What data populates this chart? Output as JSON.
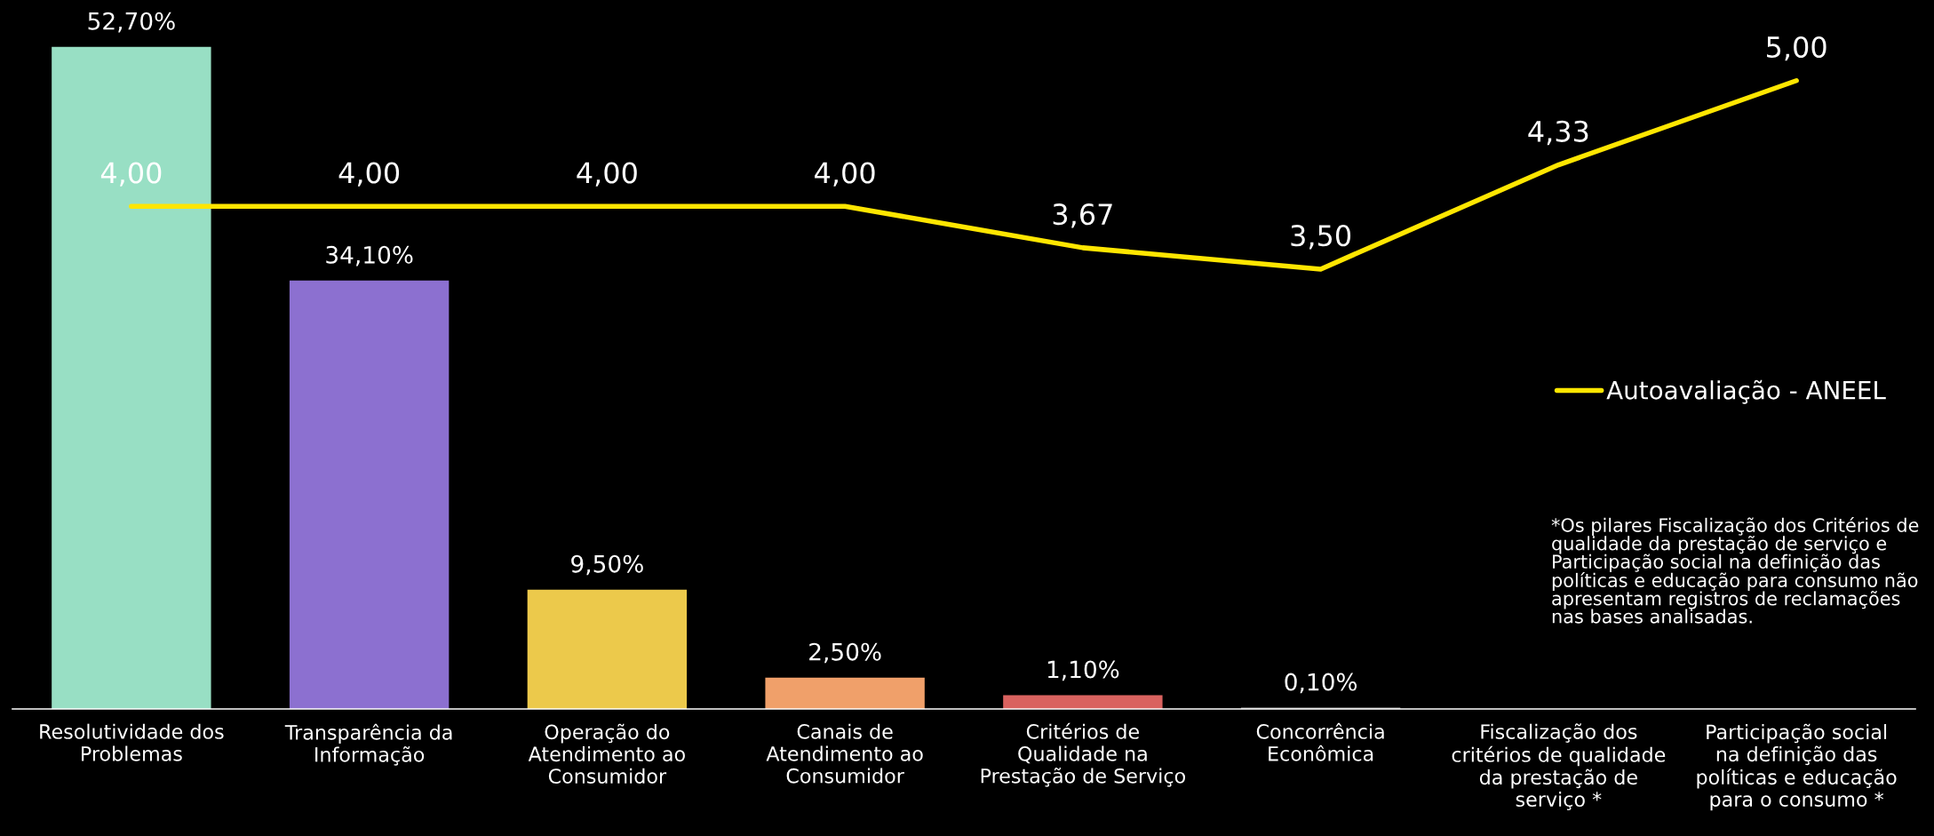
{
  "chart_data": {
    "type": "bar",
    "categories": [
      "Resolutividade dos\nProblemas",
      "Transparência da\nInformação",
      "Operação do\nAtendimento ao\nConsumidor",
      "Canais de\nAtendimento ao\nConsumidor",
      "Critérios de\nQualidade na\nPrestação de Serviço",
      "Concorrência\nEconômica",
      "Fiscalização dos\ncritérios de qualidade\nda prestação de\nserviço *",
      "Participação social\nna definição das\npolíticas e educação\npara o consumo *"
    ],
    "series": [
      {
        "colors": [
          "#98dfc4",
          "#8c70d0",
          "#ecc94b",
          "#f0a06a",
          "#d9625f",
          "#9a9a9a",
          "#9a9a9a",
          "#9a9a9a"
        ],
        "values": [
          52.7,
          34.1,
          9.5,
          2.5,
          1.1,
          0.1,
          null,
          null
        ],
        "value_labels": [
          "52,70%",
          "34,10%",
          "9,50%",
          "2,50%",
          "1,10%",
          "0,10%",
          null,
          null
        ]
      },
      {
        "type": "line",
        "name": "Autoavaliação - ANEEL",
        "color": "#ffe600",
        "axis": "y2",
        "values": [
          4.0,
          4.0,
          4.0,
          4.0,
          3.67,
          3.5,
          4.33,
          5.0
        ],
        "value_labels": [
          "4,00",
          "4,00",
          "4,00",
          "4,00",
          "3,67",
          "3,50",
          "4,33",
          "5,00"
        ]
      }
    ],
    "tick_labels": false,
    "grid": false,
    "legend": "right",
    "marker": "none",
    "line_style": "solid",
    "annotations": [
      "*Os pilares Fiscalização dos Critérios de qualidade da prestação de serviço e Participação social na definição das políticas e educação para consumo não apresentam registros de reclamações nas bases analisadas."
    ]
  }
}
